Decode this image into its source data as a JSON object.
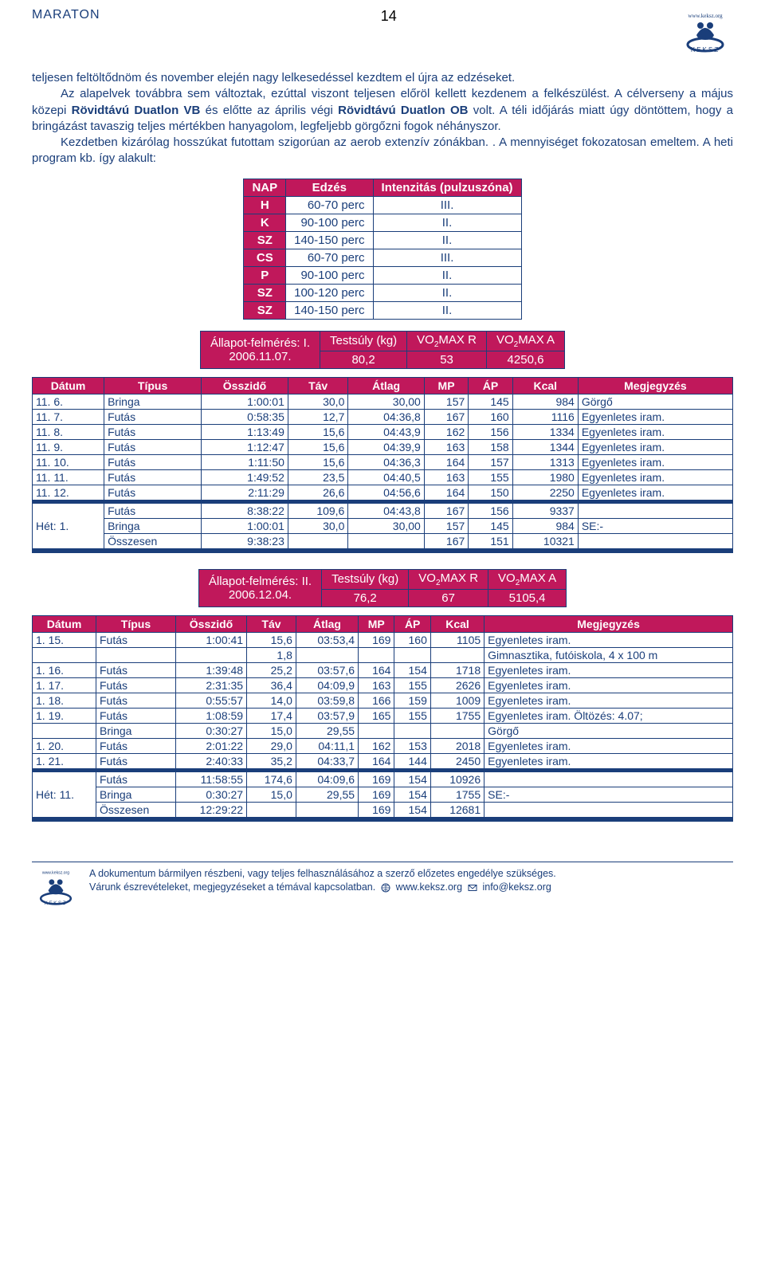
{
  "header": {
    "section": "MARATON",
    "page_number": "14"
  },
  "paragraphs": {
    "p1a": "teljesen feltöltődnöm és november elején nagy lelkesedéssel kezdtem el újra az edzéseket.",
    "p1b": "Az alapelvek továbbra sem változtak, ezúttal viszont teljesen előröl kellett kezdenem a felkészülést. A célverseny a május közepi ",
    "p1c_bold": "Rövidtávú Duatlon VB",
    "p1d": " és előtte az április végi ",
    "p1e_bold": "Rövidtávú Duatlon OB",
    "p1f": " volt. A téli időjárás miatt úgy döntöttem, hogy a bringázást tavaszig teljes mértékben hanyagolom, legfeljebb görgőzni fogok néhányszor.",
    "p2": "Kezdetben kizárólag hosszúkat futottam szigorúan az aerob extenzív zónákban. . A mennyiséget fokozatosan emeltem. A heti program kb. így alakult:"
  },
  "schedule": {
    "headers": [
      "NAP",
      "Edzés",
      "Intenzitás (pulzuszóna)"
    ],
    "rows": [
      [
        "H",
        "60-70 perc",
        "III."
      ],
      [
        "K",
        "90-100 perc",
        "II."
      ],
      [
        "SZ",
        "140-150 perc",
        "II."
      ],
      [
        "CS",
        "60-70 perc",
        "III."
      ],
      [
        "P",
        "90-100 perc",
        "II."
      ],
      [
        "SZ",
        "100-120 perc",
        "II."
      ],
      [
        "SZ",
        "140-150 perc",
        "II."
      ]
    ]
  },
  "assess1": {
    "title": "Állapot-felmérés: I.",
    "date": "2006.11.07.",
    "cols": [
      "Testsúly (kg)",
      "VO₂MAX R",
      "VO₂MAX A"
    ],
    "vals": [
      "80,2",
      "53",
      "4250,6"
    ]
  },
  "table1": {
    "headers": [
      "Dátum",
      "Típus",
      "Összidő",
      "Táv",
      "Átlag",
      "MP",
      "ÁP",
      "Kcal",
      "Megjegyzés"
    ],
    "rows": [
      [
        "11. 6.",
        "Bringa",
        "1:00:01",
        "30,0",
        "30,00",
        "157",
        "145",
        "984",
        "Görgő"
      ],
      [
        "11. 7.",
        "Futás",
        "0:58:35",
        "12,7",
        "04:36,8",
        "167",
        "160",
        "1116",
        "Egyenletes iram."
      ],
      [
        "11. 8.",
        "Futás",
        "1:13:49",
        "15,6",
        "04:43,9",
        "162",
        "156",
        "1334",
        "Egyenletes iram."
      ],
      [
        "11. 9.",
        "Futás",
        "1:12:47",
        "15,6",
        "04:39,9",
        "163",
        "158",
        "1344",
        "Egyenletes iram."
      ],
      [
        "11. 10.",
        "Futás",
        "1:11:50",
        "15,6",
        "04:36,3",
        "164",
        "157",
        "1313",
        "Egyenletes iram."
      ],
      [
        "11. 11.",
        "Futás",
        "1:49:52",
        "23,5",
        "04:40,5",
        "163",
        "155",
        "1980",
        "Egyenletes iram."
      ],
      [
        "11. 12.",
        "Futás",
        "2:11:29",
        "26,6",
        "04:56,6",
        "164",
        "150",
        "2250",
        "Egyenletes iram."
      ]
    ],
    "summary_label": "Hét: 1.",
    "summary": [
      [
        "Futás",
        "8:38:22",
        "109,6",
        "04:43,8",
        "167",
        "156",
        "9337",
        ""
      ],
      [
        "Bringa",
        "1:00:01",
        "30,0",
        "30,00",
        "157",
        "145",
        "984",
        "SE:-"
      ],
      [
        "Összesen",
        "9:38:23",
        "",
        "",
        "167",
        "151",
        "10321",
        ""
      ]
    ]
  },
  "assess2": {
    "title": "Állapot-felmérés: II.",
    "date": "2006.12.04.",
    "cols": [
      "Testsúly (kg)",
      "VO₂MAX R",
      "VO₂MAX A"
    ],
    "vals": [
      "76,2",
      "67",
      "5105,4"
    ]
  },
  "table2": {
    "headers": [
      "Dátum",
      "Típus",
      "Összidő",
      "Táv",
      "Átlag",
      "MP",
      "ÁP",
      "Kcal",
      "Megjegyzés"
    ],
    "rows": [
      [
        "1. 15.",
        "Futás",
        "1:00:41",
        "15,6",
        "03:53,4",
        "169",
        "160",
        "1105",
        "Egyenletes iram."
      ],
      [
        "",
        "",
        "",
        "1,8",
        "",
        "",
        "",
        "",
        "Gimnasztika, futóiskola, 4 x 100 m"
      ],
      [
        "1. 16.",
        "Futás",
        "1:39:48",
        "25,2",
        "03:57,6",
        "164",
        "154",
        "1718",
        "Egyenletes iram."
      ],
      [
        "1. 17.",
        "Futás",
        "2:31:35",
        "36,4",
        "04:09,9",
        "163",
        "155",
        "2626",
        "Egyenletes iram."
      ],
      [
        "1. 18.",
        "Futás",
        "0:55:57",
        "14,0",
        "03:59,8",
        "166",
        "159",
        "1009",
        "Egyenletes iram."
      ],
      [
        "1. 19.",
        "Futás",
        "1:08:59",
        "17,4",
        "03:57,9",
        "165",
        "155",
        "1755",
        "Egyenletes iram. Öltözés: 4.07;"
      ],
      [
        "",
        "Bringa",
        "0:30:27",
        "15,0",
        "29,55",
        "",
        "",
        "",
        "Görgő"
      ],
      [
        "1. 20.",
        "Futás",
        "2:01:22",
        "29,0",
        "04:11,1",
        "162",
        "153",
        "2018",
        "Egyenletes iram."
      ],
      [
        "1. 21.",
        "Futás",
        "2:40:33",
        "35,2",
        "04:33,7",
        "164",
        "144",
        "2450",
        "Egyenletes iram."
      ]
    ],
    "summary_label": "Hét: 11.",
    "summary": [
      [
        "Futás",
        "11:58:55",
        "174,6",
        "04:09,6",
        "169",
        "154",
        "10926",
        ""
      ],
      [
        "Bringa",
        "0:30:27",
        "15,0",
        "29,55",
        "169",
        "154",
        "1755",
        "SE:-"
      ],
      [
        "Összesen",
        "12:29:22",
        "",
        "",
        "169",
        "154",
        "12681",
        ""
      ]
    ]
  },
  "footer": {
    "line1": "A dokumentum bármilyen részbeni, vagy teljes felhasználásához a szerző előzetes engedélye szükséges.",
    "line2a": "Várunk észrevételeket, megjegyzéseket a témával kapcsolatban.",
    "line2b": "www.keksz.org",
    "line2c": "info@keksz.org"
  },
  "colors": {
    "brand": "#1a3e7a",
    "magenta": "#c0185b",
    "white": "#ffffff"
  }
}
